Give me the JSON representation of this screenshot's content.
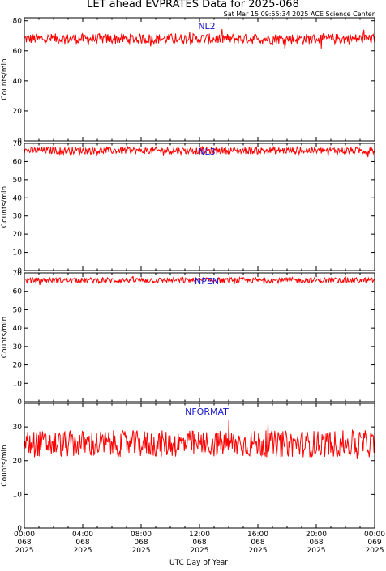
{
  "header": {
    "title": "LET ahead EVPRATES Data for 2025-068",
    "timestamp": "Sat Mar 15 09:55:34 2025 ACE Science Center"
  },
  "colors": {
    "series": "#ff0000",
    "label": "#1515d0",
    "axis": "#000000"
  },
  "chart_data": {
    "type": "line",
    "xlabel": "UTC Day of Year",
    "x_ticks": [
      {
        "time": "00:00",
        "day": "068",
        "year": "2025"
      },
      {
        "time": "04:00",
        "day": "068",
        "year": "2025"
      },
      {
        "time": "08:00",
        "day": "068",
        "year": "2025"
      },
      {
        "time": "12:00",
        "day": "068",
        "year": "2025"
      },
      {
        "time": "16:00",
        "day": "068",
        "year": "2025"
      },
      {
        "time": "20:00",
        "day": "068",
        "year": "2025"
      },
      {
        "time": "00:00",
        "day": "069",
        "year": "2025"
      }
    ],
    "panels": [
      {
        "name": "NL2",
        "ylabel": "Counts/min",
        "ylim": [
          0,
          82
        ],
        "yticks": [
          0,
          20,
          40,
          60,
          80
        ],
        "mean": 68,
        "spread": 3.5
      },
      {
        "name": "NL3",
        "ylabel": "Counts/min",
        "ylim": [
          0,
          70
        ],
        "yticks": [
          0,
          10,
          20,
          30,
          40,
          50,
          60,
          70
        ],
        "mean": 66,
        "spread": 2
      },
      {
        "name": "NPEN",
        "ylabel": "Counts/min",
        "ylim": [
          0,
          70
        ],
        "yticks": [
          0,
          10,
          20,
          30,
          40,
          50,
          60,
          70
        ],
        "mean": 66,
        "spread": 1.5
      },
      {
        "name": "NFORMAT",
        "ylabel": "Counts/min",
        "ylim": [
          0,
          37
        ],
        "yticks": [
          0,
          10,
          20,
          30
        ],
        "mean": 25,
        "spread": 4
      }
    ]
  }
}
